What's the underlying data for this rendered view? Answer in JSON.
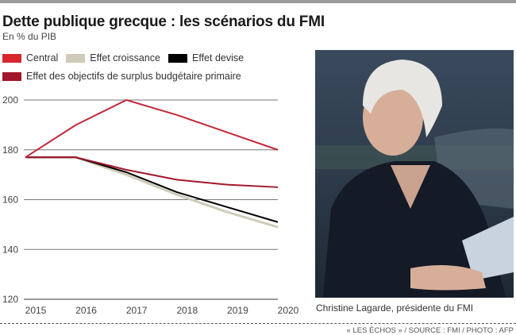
{
  "header": {
    "title": "Dette publique grecque : les scénarios du FMI",
    "subtitle": "En % du PIB"
  },
  "legend": [
    {
      "label": "Central",
      "color": "#d7262e"
    },
    {
      "label": "Effet croissance",
      "color": "#cfcbb8"
    },
    {
      "label": "Effet devise",
      "color": "#000000"
    },
    {
      "label": "Effet des objectifs de surplus budgétaire primaire",
      "color": "#a3172a"
    }
  ],
  "photo": {
    "caption": "Christine Lagarde, présidente du FMI"
  },
  "footer": {
    "credit": "« LES ÉCHOS » / SOURCE : FMI / PHOTO : AFP"
  },
  "chart_data": {
    "type": "line",
    "title": "Dette publique grecque : les scénarios du FMI",
    "subtitle": "En % du PIB",
    "xlabel": "",
    "ylabel": "En % du PIB",
    "x": [
      "2015",
      "2016",
      "2017",
      "2018",
      "2019",
      "2020"
    ],
    "ylim": [
      120,
      200
    ],
    "yticks": [
      120,
      140,
      160,
      180,
      200
    ],
    "grid": "horizontal",
    "legend_position": "top-left",
    "series": [
      {
        "name": "Central",
        "color": "#c2283a",
        "values": [
          177,
          190,
          200,
          194,
          187,
          180
        ]
      },
      {
        "name": "Effet croissance",
        "color": "#cfcbb8",
        "values": [
          177,
          177,
          170,
          162,
          155,
          149
        ]
      },
      {
        "name": "Effet devise",
        "color": "#000000",
        "values": [
          177,
          177,
          171,
          163,
          157,
          151
        ]
      },
      {
        "name": "Effet des objectifs de surplus budgétaire primaire",
        "color": "#a3172a",
        "values": [
          177,
          177,
          172,
          168,
          166,
          165
        ]
      }
    ]
  }
}
